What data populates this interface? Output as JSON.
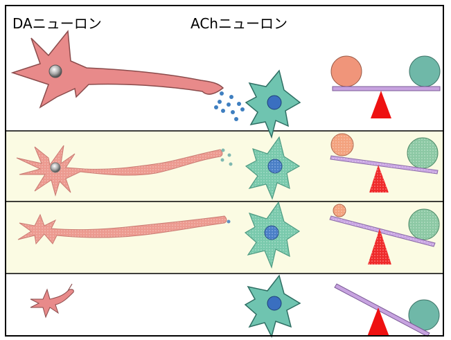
{
  "headers": {
    "da_neuron": "DAニューロン",
    "ach_neuron": "AChニューロン"
  },
  "rows": [
    {
      "state": "normal",
      "da_neuron_size": "full",
      "dopamine_dots": 10,
      "balance_tilt": "level",
      "left_ball_level": 1.0
    },
    {
      "state": "mild",
      "da_neuron_size": "reduced",
      "dopamine_dots": 4,
      "balance_tilt": "slight-right",
      "left_ball_level": 0.6
    },
    {
      "state": "moderate",
      "da_neuron_size": "thin",
      "dopamine_dots": 1,
      "balance_tilt": "right",
      "left_ball_level": 0.35
    },
    {
      "state": "severe",
      "da_neuron_size": "tiny",
      "dopamine_dots": 0,
      "balance_tilt": "strong-right",
      "left_ball_level": 0.0
    }
  ],
  "colors": {
    "da_neuron": "#e88a8a",
    "da_neuron_border": "#8a4b4b",
    "ach_neuron": "#6fc4b0",
    "ach_nucleus": "#3a6fc0",
    "dopamine_dot": "#3f7fc0",
    "ball_left": "#f0957a",
    "ball_right": "#6fb8a8",
    "beam": "#c7a3e0",
    "fulcrum": "#ee1111",
    "row_highlight": "#fbfbe3",
    "frame": "#000000"
  },
  "icons": {
    "da_neuron": "dopamine-neuron-icon",
    "ach_neuron": "acetylcholine-neuron-icon",
    "balance": "seesaw-balance-icon"
  }
}
